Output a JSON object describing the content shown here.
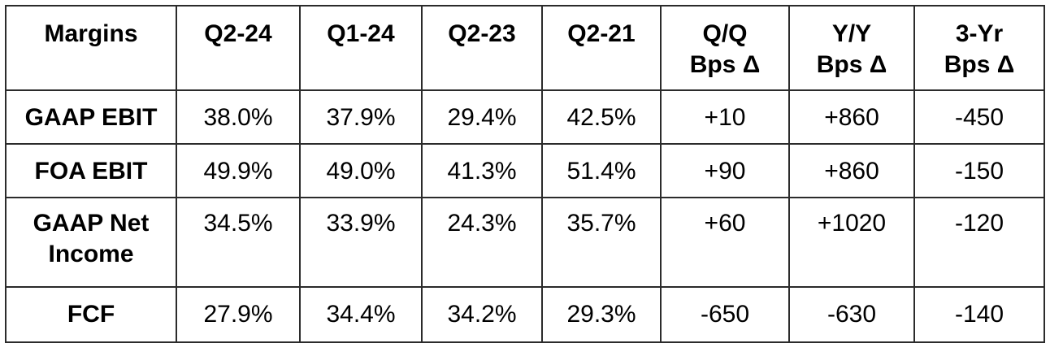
{
  "table": {
    "headers": [
      "Margins",
      "Q2-24",
      "Q1-24",
      "Q2-23",
      "Q2-21",
      "Q/Q\nBps Δ",
      "Y/Y\nBps Δ",
      "3-Yr\nBps Δ"
    ],
    "rows": [
      {
        "label": "GAAP EBIT",
        "cells": [
          "38.0%",
          "37.9%",
          "29.4%",
          "42.5%",
          "+10",
          "+860",
          "-450"
        ]
      },
      {
        "label": "FOA EBIT",
        "cells": [
          "49.9%",
          "49.0%",
          "41.3%",
          "51.4%",
          "+90",
          "+860",
          "-150"
        ]
      },
      {
        "label": "GAAP Net\nIncome",
        "cells": [
          "34.5%",
          "33.9%",
          "24.3%",
          "35.7%",
          "+60",
          "+1020",
          "-120"
        ]
      },
      {
        "label": "FCF",
        "cells": [
          "27.9%",
          "34.4%",
          "34.2%",
          "29.3%",
          "-650",
          "-630",
          "-140"
        ]
      }
    ]
  }
}
